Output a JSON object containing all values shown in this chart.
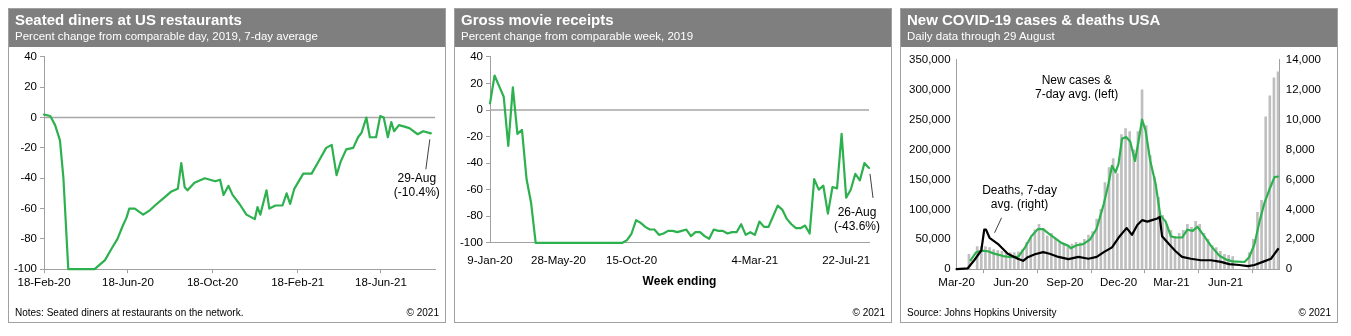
{
  "chart_data": [
    {
      "type": "line",
      "title": "Seated diners at US restaurants",
      "subtitle": "Percent change from comparable day, 2019, 7-day average",
      "color": "#2db14e",
      "x": [
        "2020-02-18",
        "2020-02-27",
        "2020-03-05",
        "2020-03-12",
        "2020-03-17",
        "2020-03-24",
        "2020-05-01",
        "2020-05-16",
        "2020-05-26",
        "2020-06-03",
        "2020-06-10",
        "2020-06-16",
        "2020-06-20",
        "2020-06-28",
        "2020-07-04",
        "2020-07-10",
        "2020-07-20",
        "2020-07-27",
        "2020-08-09",
        "2020-08-19",
        "2020-08-29",
        "2020-09-03",
        "2020-09-08",
        "2020-09-12",
        "2020-09-22",
        "2020-10-07",
        "2020-10-22",
        "2020-10-29",
        "2020-11-03",
        "2020-11-10",
        "2020-11-16",
        "2020-11-26",
        "2020-12-06",
        "2020-12-18",
        "2020-12-22",
        "2020-12-26",
        "2020-12-31",
        "2021-01-04",
        "2021-01-08",
        "2021-01-17",
        "2021-01-27",
        "2021-02-02",
        "2021-02-07",
        "2021-02-13",
        "2021-02-26",
        "2021-03-10",
        "2021-03-20",
        "2021-03-31",
        "2021-04-08",
        "2021-04-15",
        "2021-04-21",
        "2021-04-29",
        "2021-05-09",
        "2021-05-16",
        "2021-05-21",
        "2021-05-28",
        "2021-06-02",
        "2021-06-11",
        "2021-06-17",
        "2021-06-22",
        "2021-06-28",
        "2021-07-03",
        "2021-07-07",
        "2021-07-14",
        "2021-07-22",
        "2021-07-29",
        "2021-08-10",
        "2021-08-18",
        "2021-08-29"
      ],
      "values": [
        2,
        1,
        -5,
        -15,
        -40,
        -100,
        -100,
        -94,
        -86,
        -80,
        -72,
        -66,
        -60,
        -60,
        -62,
        -64,
        -61,
        -58,
        -53,
        -49,
        -47,
        -30,
        -46,
        -48,
        -43,
        -40,
        -42,
        -41,
        -51,
        -45,
        -51,
        -57,
        -64,
        -67,
        -59,
        -64,
        -55,
        -48,
        -60,
        -58,
        -58,
        -50,
        -57,
        -47,
        -37,
        -37,
        -29,
        -20,
        -18,
        -38,
        -29,
        -21,
        -20,
        -13,
        -10,
        0,
        -13,
        -13,
        1,
        0,
        -13,
        -3,
        -9,
        -5,
        -6,
        -7,
        -11,
        -9,
        -10.4
      ],
      "xlim": [
        "2020-02-18",
        "2021-09-04"
      ],
      "xticks": [
        {
          "value": "2020-02-18",
          "label": "18-Feb-20"
        },
        {
          "value": "2020-06-18",
          "label": "18-Jun-20"
        },
        {
          "value": "2020-10-18",
          "label": "18-Oct-20"
        },
        {
          "value": "2021-02-18",
          "label": "18-Feb-21"
        },
        {
          "value": "2021-06-18",
          "label": "18-Jun-21"
        }
      ],
      "ylim": [
        -100,
        40
      ],
      "yticks": [
        -100,
        -80,
        -60,
        -40,
        -20,
        0,
        20,
        40
      ],
      "ref_lines": [
        {
          "axis": "y",
          "value": 0,
          "color": "#a6a6a6"
        }
      ],
      "annotations": [
        {
          "text": "29-Aug\n(-10.4%)",
          "x": "2021-08-29",
          "y": -10.4
        },
        "Notes: Seated diners at restaurants on the network.",
        "© 2021"
      ]
    },
    {
      "type": "line",
      "title": "Gross movie receipts",
      "subtitle": "Percent change from comparable week, 2019",
      "xlabel": "Week ending",
      "color": "#2db14e",
      "categories": [
        "9-Jan-20",
        null,
        null,
        null,
        null,
        null,
        null,
        null,
        null,
        null,
        null,
        null,
        null,
        null,
        null,
        "28-May-20",
        null,
        null,
        null,
        null,
        null,
        null,
        null,
        null,
        null,
        null,
        null,
        null,
        null,
        null,
        null,
        "15-Oct-20",
        null,
        null,
        null,
        null,
        null,
        null,
        null,
        null,
        null,
        null,
        null,
        null,
        null,
        null,
        null,
        null,
        null,
        null,
        null,
        null,
        null,
        null,
        null,
        null,
        null,
        null,
        "4-Mar-21",
        null,
        null,
        null,
        null,
        null,
        null,
        null,
        null,
        null,
        null,
        null,
        null,
        null,
        null,
        null,
        null,
        null,
        null,
        null,
        "22-Jul-21",
        null,
        null,
        null,
        null,
        null
      ],
      "values": [
        5,
        26,
        18,
        10,
        -27,
        17,
        -18,
        -15,
        -52,
        -70,
        -100,
        -100,
        -100,
        -100,
        -100,
        -100,
        -100,
        -100,
        -100,
        -100,
        -100,
        -100,
        -100,
        -100,
        -100,
        -100,
        -100,
        -100,
        -100,
        -100,
        -98,
        -93,
        -83,
        -85,
        -88,
        -90,
        -90,
        -94,
        -93,
        -91,
        -91,
        -92,
        -91,
        -90,
        -95,
        -92,
        -92,
        -95,
        -97,
        -90,
        -91,
        -91,
        -93,
        -92,
        -92,
        -86,
        -94,
        -92,
        -94,
        -84,
        -88,
        -88,
        -80,
        -72,
        -75,
        -82,
        -86,
        -89,
        -89,
        -87,
        -93,
        -52,
        -60,
        -57,
        -78,
        -58,
        -59,
        -18,
        -66,
        -60,
        -48,
        -53,
        -40,
        -43.6
      ],
      "ylim": [
        -100,
        40
      ],
      "yticks": [
        -100,
        -80,
        -60,
        -40,
        -20,
        0,
        20,
        40
      ],
      "ref_lines": [
        {
          "axis": "y",
          "value": 0,
          "color": "#a6a6a6"
        }
      ],
      "annotations": [
        "26-Aug\n(-43.6%)",
        "© 2021"
      ]
    },
    {
      "type": "bar",
      "title": "New COVID-19 cases & deaths USA",
      "subtitle": "Daily data through 29 August",
      "series": [
        {
          "color": "#bfbfbf",
          "x": [
            "2020-03-01",
            "2020-03-08",
            "2020-03-15",
            "2020-03-22",
            "2020-03-29",
            "2020-04-05",
            "2020-04-12",
            "2020-04-19",
            "2020-04-26",
            "2020-05-03",
            "2020-05-10",
            "2020-05-17",
            "2020-05-24",
            "2020-05-31",
            "2020-06-07",
            "2020-06-14",
            "2020-06-21",
            "2020-06-28",
            "2020-07-05",
            "2020-07-12",
            "2020-07-19",
            "2020-07-26",
            "2020-08-02",
            "2020-08-09",
            "2020-08-16",
            "2020-08-23",
            "2020-08-30",
            "2020-09-06",
            "2020-09-13",
            "2020-09-20",
            "2020-09-27",
            "2020-10-04",
            "2020-10-11",
            "2020-10-18",
            "2020-10-25",
            "2020-11-01",
            "2020-11-08",
            "2020-11-15",
            "2020-11-22",
            "2020-11-29",
            "2020-12-06",
            "2020-12-13",
            "2020-12-20",
            "2020-12-27",
            "2021-01-03",
            "2021-01-10",
            "2021-01-17",
            "2021-01-24",
            "2021-01-31",
            "2021-02-07",
            "2021-02-14",
            "2021-02-21",
            "2021-02-28",
            "2021-03-07",
            "2021-03-14",
            "2021-03-21",
            "2021-03-28",
            "2021-04-04",
            "2021-04-11",
            "2021-04-18",
            "2021-04-25",
            "2021-05-02",
            "2021-05-09",
            "2021-05-16",
            "2021-05-23",
            "2021-05-30",
            "2021-06-06",
            "2021-06-13",
            "2021-06-20",
            "2021-06-27",
            "2021-07-04",
            "2021-07-11",
            "2021-07-18",
            "2021-07-25",
            "2021-08-01",
            "2021-08-08",
            "2021-08-15",
            "2021-08-22",
            "2021-08-29"
          ],
          "values": [
            0,
            0,
            null,
            25000,
            null,
            38000,
            38000,
            38000,
            36000,
            33000,
            31000,
            30000,
            28000,
            28000,
            28000,
            29000,
            33000,
            45000,
            52000,
            66000,
            75000,
            68000,
            56000,
            60000,
            50000,
            45000,
            40000,
            37000,
            42000,
            45000,
            44000,
            50000,
            57000,
            63000,
            84000,
            100000,
            145000,
            170000,
            185000,
            160000,
            225000,
            235000,
            230000,
            200000,
            230000,
            300000,
            240000,
            190000,
            155000,
            120000,
            90000,
            75000,
            65000,
            55000,
            60000,
            65000,
            75000,
            70000,
            80000,
            75000,
            60000,
            50000,
            40000,
            36000,
            30000,
            25000,
            23000,
            21000,
            null,
            null,
            null,
            28000,
            50000,
            95000,
            115000,
            255000,
            290000,
            320000,
            330000
          ]
        },
        {
          "type": "line",
          "name": "New cases &\n7-day avg. (left)",
          "color": "#2db14e",
          "x": [
            "2020-03-25",
            "2020-04-03",
            "2020-04-12",
            "2020-04-23",
            "2020-05-04",
            "2020-05-19",
            "2020-06-02",
            "2020-06-14",
            "2020-06-25",
            "2020-07-06",
            "2020-07-17",
            "2020-07-26",
            "2020-08-04",
            "2020-08-15",
            "2020-08-26",
            "2020-09-07",
            "2020-09-11",
            "2020-09-21",
            "2020-10-02",
            "2020-10-14",
            "2020-10-25",
            "2020-11-06",
            "2020-11-14",
            "2020-11-20",
            "2020-11-26",
            "2020-12-01",
            "2020-12-07",
            "2020-12-14",
            "2020-12-21",
            "2020-12-29",
            "2021-01-03",
            "2021-01-10",
            "2021-01-16",
            "2021-01-24",
            "2021-02-02",
            "2021-02-10",
            "2021-02-19",
            "2021-02-28",
            "2021-03-08",
            "2021-03-19",
            "2021-03-28",
            "2021-04-06",
            "2021-04-14",
            "2021-04-26",
            "2021-05-07",
            "2021-05-21",
            "2021-06-02",
            "2021-06-13",
            "2021-07-03",
            "2021-07-11",
            "2021-07-20",
            "2021-07-29",
            "2021-08-06",
            "2021-08-15",
            "2021-08-23",
            "2021-08-29"
          ],
          "values": [
            15000,
            28000,
            31000,
            30000,
            26000,
            22000,
            20000,
            21000,
            36000,
            55000,
            67000,
            67000,
            60000,
            52000,
            44000,
            39000,
            35000,
            40000,
            42000,
            50000,
            68000,
            109000,
            143000,
            173000,
            162000,
            176000,
            218000,
            221000,
            213000,
            181000,
            208000,
            250000,
            232000,
            181000,
            143000,
            90000,
            80000,
            55000,
            53000,
            53000,
            66000,
            64000,
            71000,
            55000,
            39000,
            23000,
            16000,
            13000,
            12000,
            20000,
            42000,
            82000,
            111000,
            135000,
            154000,
            155000
          ]
        },
        {
          "type": "line",
          "name": "Deaths, 7-day\navg. (right)",
          "color": "#000000",
          "axis": "y2",
          "x": [
            "2020-03-01",
            "2020-03-20",
            "2020-03-31",
            "2020-04-12",
            "2020-04-17",
            "2020-04-20",
            "2020-04-26",
            "2020-05-10",
            "2020-05-27",
            "2020-06-13",
            "2020-06-22",
            "2020-06-30",
            "2020-07-12",
            "2020-07-26",
            "2020-08-06",
            "2020-08-21",
            "2020-09-07",
            "2020-09-24",
            "2020-10-11",
            "2020-10-25",
            "2020-11-06",
            "2020-11-20",
            "2020-12-01",
            "2020-12-10",
            "2020-12-15",
            "2020-12-24",
            "2021-01-02",
            "2021-01-10",
            "2021-01-19",
            "2021-01-27",
            "2021-02-05",
            "2021-02-09",
            "2021-02-13",
            "2021-02-25",
            "2021-03-08",
            "2021-03-19",
            "2021-04-03",
            "2021-04-20",
            "2021-05-07",
            "2021-05-24",
            "2021-06-07",
            "2021-06-24",
            "2021-07-09",
            "2021-07-20",
            "2021-08-03",
            "2021-08-17",
            "2021-08-29"
          ],
          "values": [
            0,
            60,
            600,
            1250,
            2650,
            2650,
            2100,
            1700,
            1030,
            700,
            560,
            800,
            1000,
            1140,
            1030,
            820,
            670,
            820,
            700,
            820,
            1140,
            1460,
            2100,
            2530,
            2750,
            2300,
            2960,
            3280,
            3180,
            3280,
            3390,
            3500,
            2210,
            1670,
            1200,
            820,
            700,
            600,
            600,
            490,
            340,
            280,
            210,
            280,
            490,
            700,
            1350
          ]
        }
      ],
      "xlim": [
        "2020-03-01",
        "2021-09-01"
      ],
      "xticks": [
        {
          "value": "2020-03-01",
          "label": "Mar-20"
        },
        {
          "value": "2020-06-01",
          "label": "Jun-20"
        },
        {
          "value": "2020-09-01",
          "label": "Sep-20"
        },
        {
          "value": "2020-12-01",
          "label": "Dec-20"
        },
        {
          "value": "2021-03-01",
          "label": "Mar-21"
        },
        {
          "value": "2021-06-01",
          "label": "Jun-21"
        }
      ],
      "ylim": [
        0,
        350000
      ],
      "yticks": [
        0,
        {
          "value": 50000,
          "label": "50,000"
        },
        {
          "value": 100000,
          "label": "100,000"
        },
        {
          "value": 150000,
          "label": "150,000"
        },
        {
          "value": 200000,
          "label": "200,000"
        },
        {
          "value": 250000,
          "label": "250,000"
        },
        {
          "value": 300000,
          "label": "300,000"
        },
        {
          "value": 350000,
          "label": "350,000"
        }
      ],
      "y2lim": [
        0,
        14000
      ],
      "y2ticks": [
        0,
        {
          "value": 2000,
          "label": "2,000"
        },
        {
          "value": 4000,
          "label": "4,000"
        },
        {
          "value": 6000,
          "label": "6,000"
        },
        {
          "value": 8000,
          "label": "8,000"
        },
        {
          "value": 10000,
          "label": "10,000"
        },
        {
          "value": 12000,
          "label": "12,000"
        },
        {
          "value": 14000,
          "label": "14,000"
        }
      ],
      "annotations": [
        "Source: Johns Hopkins University",
        "© 2021"
      ]
    }
  ]
}
